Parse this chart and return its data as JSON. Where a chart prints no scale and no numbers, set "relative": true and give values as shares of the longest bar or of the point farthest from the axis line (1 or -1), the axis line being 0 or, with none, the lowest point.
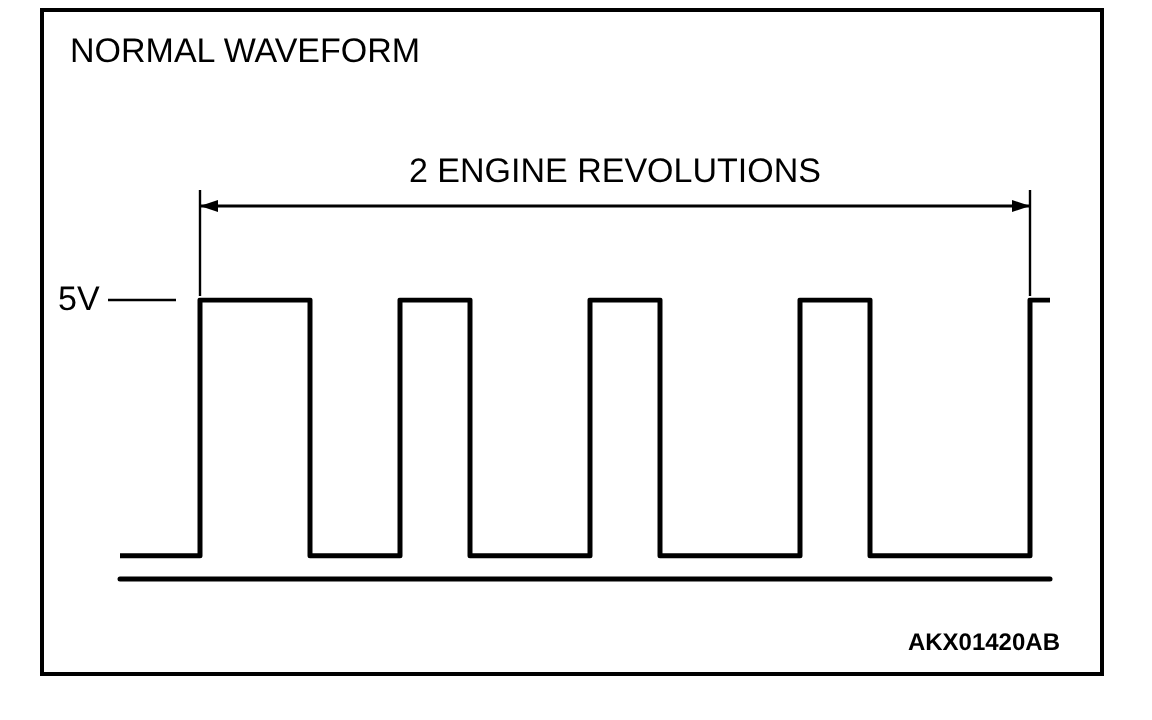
{
  "chart_data": {
    "type": "step",
    "title": "NORMAL WAVEFORM",
    "relative": true,
    "color": "#000000",
    "categories": [
      null,
      null,
      null,
      null,
      null,
      null,
      null,
      null,
      null,
      null,
      null,
      null,
      null,
      null,
      null,
      null,
      null,
      null,
      null,
      null,
      null,
      null,
      null,
      null,
      null,
      null,
      null,
      null,
      null,
      null,
      null,
      null,
      null,
      null,
      null,
      null,
      null,
      null,
      null,
      null,
      null,
      null,
      null,
      null,
      null,
      null,
      null,
      null,
      null,
      null,
      null,
      null,
      null,
      null,
      null,
      null,
      null,
      null,
      null,
      null,
      null,
      null,
      null,
      null,
      null,
      null,
      null,
      null,
      null,
      null,
      null,
      null,
      null,
      null,
      null,
      null,
      null,
      null,
      null,
      null,
      null,
      null,
      null,
      null,
      null,
      null,
      null,
      null,
      null,
      null,
      null,
      null,
      null,
      null
    ],
    "values": [
      0.08,
      0.08,
      0.08,
      0.08,
      0.08,
      0.08,
      0.08,
      0.08,
      1,
      1,
      1,
      1,
      1,
      1,
      1,
      1,
      1,
      1,
      1,
      0.08,
      0.08,
      0.08,
      0.08,
      0.08,
      0.08,
      0.08,
      0.08,
      0.08,
      1,
      1,
      1,
      1,
      1,
      1,
      1,
      0.08,
      0.08,
      0.08,
      0.08,
      0.08,
      0.08,
      0.08,
      0.08,
      0.08,
      0.08,
      0.08,
      0.08,
      1,
      1,
      1,
      1,
      1,
      1,
      1,
      0.08,
      0.08,
      0.08,
      0.08,
      0.08,
      0.08,
      0.08,
      0.08,
      0.08,
      0.08,
      0.08,
      0.08,
      0.08,
      0.08,
      1,
      1,
      1,
      1,
      1,
      1,
      1,
      0.08,
      0.08,
      0.08,
      0.08,
      0.08,
      0.08,
      0.08,
      0.08,
      0.08,
      0.08,
      0.08,
      0.08,
      0.08,
      0.08,
      0.08,
      0.08,
      1,
      1,
      1
    ],
    "annotations": [
      "2 ENGINE REVOLUTIONS",
      "5V",
      "AKX01420AB"
    ]
  }
}
